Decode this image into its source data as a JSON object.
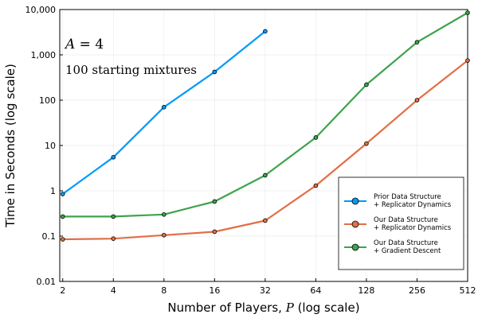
{
  "chart_data": {
    "type": "line",
    "xscale": "log2",
    "yscale": "log10",
    "x": [
      2,
      4,
      8,
      16,
      32,
      64,
      128,
      256,
      512
    ],
    "x_tick_labels": [
      "2",
      "4",
      "8",
      "16",
      "32",
      "64",
      "128",
      "256",
      "512"
    ],
    "y_tick_values": [
      0.01,
      0.1,
      1,
      10,
      100,
      1000,
      10000
    ],
    "y_tick_labels": [
      "0.01",
      "0.1",
      "1",
      "10",
      "100",
      "1,000",
      "10,000"
    ],
    "xlim": [
      1.92,
      512
    ],
    "ylim": [
      0.01,
      10000
    ],
    "xlabel_text": "Number of Players, ",
    "xlabel_var": "P",
    "xlabel_suffix": " (log scale)",
    "ylabel": "Time in Seconds (log scale)",
    "grid": true,
    "legend_position": "bottom-right",
    "annotations": {
      "line1_var": "A",
      "line1_rest": " = 4",
      "line2": "100 starting mixtures"
    },
    "series": [
      {
        "name_line1": "Prior Data Structure",
        "name_line2": "+ Replicator Dynamics",
        "color": "#009af9",
        "x": [
          2,
          4,
          8,
          16,
          32
        ],
        "y": [
          0.85,
          5.5,
          70,
          420,
          3300
        ]
      },
      {
        "name_line1": "Our Data Structure",
        "name_line2": "+ Replicator Dynamics",
        "color": "#e26f46",
        "x": [
          2,
          4,
          8,
          16,
          32,
          64,
          128,
          256,
          512
        ],
        "y": [
          0.085,
          0.088,
          0.105,
          0.125,
          0.22,
          1.3,
          11,
          100,
          750
        ]
      },
      {
        "name_line1": "Our Data Structure",
        "name_line2": "+ Gradient Descent",
        "color": "#3da44d",
        "x": [
          2,
          4,
          8,
          16,
          32,
          64,
          128,
          256,
          512
        ],
        "y": [
          0.27,
          0.27,
          0.3,
          0.58,
          2.2,
          15,
          220,
          1900,
          8500
        ]
      }
    ]
  }
}
